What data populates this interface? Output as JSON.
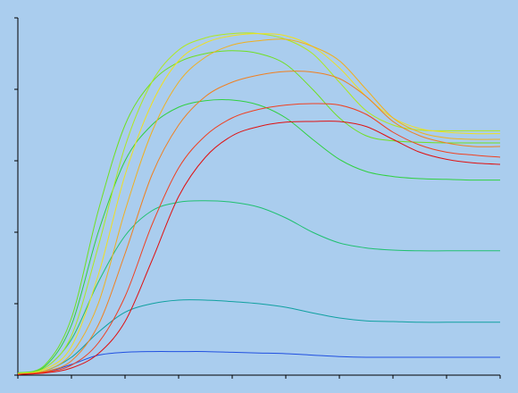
{
  "chart_data": {
    "type": "line",
    "x": [
      0,
      0.5,
      1,
      1.5,
      2,
      2.5,
      3,
      3.5,
      4,
      4.5,
      5,
      5.5,
      6,
      6.5,
      7,
      7.5,
      8,
      8.5,
      9
    ],
    "xlim": [
      0,
      9
    ],
    "ylim": [
      0,
      5
    ],
    "xticks": [
      0,
      1,
      2,
      3,
      4,
      5,
      6,
      7,
      8,
      9
    ],
    "yticks": [
      0,
      1,
      2,
      3,
      4,
      5
    ],
    "series": [
      {
        "color": "#2050e0",
        "values": [
          0.02,
          0.04,
          0.15,
          0.28,
          0.32,
          0.33,
          0.33,
          0.33,
          0.32,
          0.31,
          0.3,
          0.28,
          0.26,
          0.25,
          0.25,
          0.25,
          0.25,
          0.25,
          0.25
        ]
      },
      {
        "color": "#10a0a0",
        "values": [
          0.02,
          0.06,
          0.25,
          0.6,
          0.88,
          1.0,
          1.05,
          1.05,
          1.03,
          1.0,
          0.95,
          0.87,
          0.8,
          0.76,
          0.75,
          0.74,
          0.74,
          0.74,
          0.74
        ]
      },
      {
        "color": "#20c070",
        "values": [
          0.03,
          0.1,
          0.5,
          1.3,
          1.95,
          2.3,
          2.42,
          2.44,
          2.42,
          2.35,
          2.2,
          2.0,
          1.85,
          1.78,
          1.75,
          1.74,
          1.74,
          1.74,
          1.74
        ]
      },
      {
        "color": "#30d040",
        "values": [
          0.03,
          0.12,
          0.7,
          2.0,
          3.0,
          3.5,
          3.75,
          3.84,
          3.85,
          3.78,
          3.6,
          3.3,
          3.02,
          2.85,
          2.78,
          2.75,
          2.74,
          2.73,
          2.73
        ]
      },
      {
        "color": "#70e020",
        "values": [
          0.03,
          0.14,
          0.8,
          2.3,
          3.5,
          4.1,
          4.38,
          4.5,
          4.54,
          4.5,
          4.35,
          4.0,
          3.6,
          3.35,
          3.28,
          3.26,
          3.25,
          3.25,
          3.25
        ]
      },
      {
        "color": "#b0e820",
        "values": [
          0.02,
          0.1,
          0.55,
          1.8,
          3.2,
          4.1,
          4.55,
          4.72,
          4.78,
          4.78,
          4.7,
          4.5,
          4.1,
          3.7,
          3.5,
          3.43,
          3.42,
          3.42,
          3.42
        ]
      },
      {
        "color": "#f0e020",
        "values": [
          0.02,
          0.08,
          0.4,
          1.4,
          2.8,
          3.8,
          4.4,
          4.65,
          4.75,
          4.78,
          4.75,
          4.6,
          4.3,
          3.9,
          3.6,
          3.45,
          3.4,
          3.38,
          3.38
        ]
      },
      {
        "color": "#f0b020",
        "values": [
          0.01,
          0.06,
          0.3,
          1.0,
          2.3,
          3.4,
          4.1,
          4.45,
          4.62,
          4.68,
          4.7,
          4.6,
          4.4,
          4.0,
          3.6,
          3.4,
          3.32,
          3.3,
          3.3
        ]
      },
      {
        "color": "#f08020",
        "values": [
          0.01,
          0.05,
          0.2,
          0.7,
          1.7,
          2.8,
          3.5,
          3.9,
          4.1,
          4.2,
          4.25,
          4.24,
          4.15,
          3.9,
          3.55,
          3.35,
          3.25,
          3.2,
          3.2
        ]
      },
      {
        "color": "#f04020",
        "values": [
          0.01,
          0.04,
          0.14,
          0.45,
          1.1,
          2.1,
          2.9,
          3.35,
          3.6,
          3.72,
          3.78,
          3.8,
          3.78,
          3.65,
          3.4,
          3.22,
          3.12,
          3.08,
          3.05
        ]
      },
      {
        "color": "#e01010",
        "values": [
          0.01,
          0.03,
          0.1,
          0.3,
          0.75,
          1.6,
          2.5,
          3.05,
          3.35,
          3.48,
          3.54,
          3.55,
          3.55,
          3.48,
          3.3,
          3.12,
          3.02,
          2.97,
          2.95
        ]
      }
    ]
  }
}
